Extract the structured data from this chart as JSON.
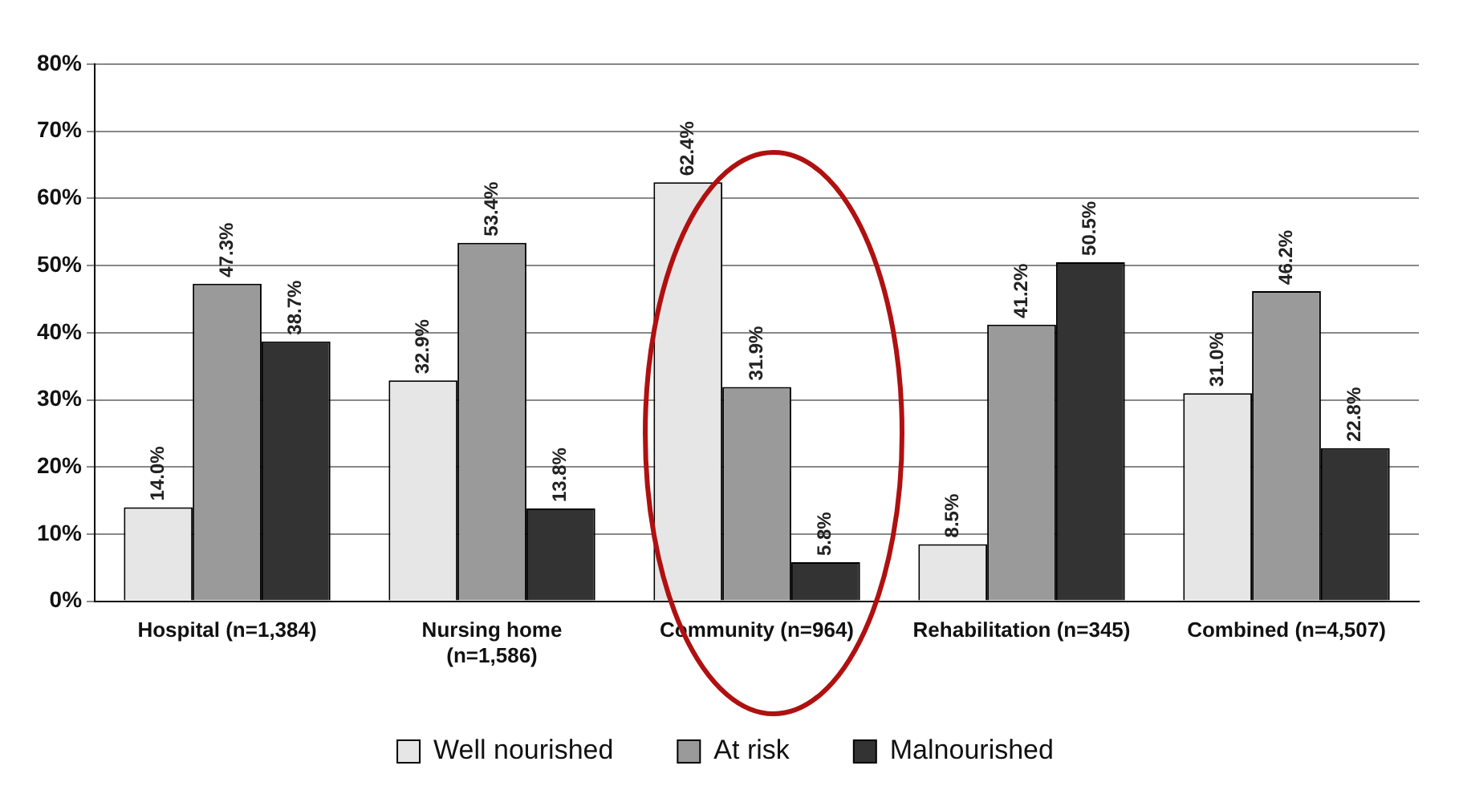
{
  "chart_data": {
    "type": "bar",
    "categories": [
      "Hospital (n=1,384)",
      "Nursing home (n=1,586)",
      "Community (n=964)",
      "Rehabilitation (n=345)",
      "Combined (n=4,507)"
    ],
    "series": [
      {
        "name": "Well nourished",
        "color": "#e6e6e6",
        "values": [
          14.0,
          32.9,
          62.4,
          8.5,
          31.0
        ],
        "value_labels": [
          "14.0%",
          "32.9%",
          "62.4%",
          "8.5%",
          "31.0%"
        ]
      },
      {
        "name": "At risk",
        "color": "#9a9a9a",
        "values": [
          47.3,
          53.4,
          31.9,
          41.2,
          46.2
        ],
        "value_labels": [
          "47.3%",
          "53.4%",
          "31.9%",
          "41.2%",
          "46.2%"
        ]
      },
      {
        "name": "Malnourished",
        "color": "#333333",
        "values": [
          38.7,
          13.8,
          5.8,
          50.5,
          22.8
        ],
        "value_labels": [
          "38.7%",
          "13.8%",
          "5.8%",
          "50.5%",
          "22.8%"
        ]
      }
    ],
    "ylim": [
      0,
      80
    ],
    "yticks": [
      {
        "value": 0,
        "label": "0%"
      },
      {
        "value": 10,
        "label": "10%"
      },
      {
        "value": 20,
        "label": "20%"
      },
      {
        "value": 30,
        "label": "30%"
      },
      {
        "value": 40,
        "label": "40%"
      },
      {
        "value": 50,
        "label": "50%"
      },
      {
        "value": 60,
        "label": "60%"
      },
      {
        "value": 70,
        "label": "70%"
      },
      {
        "value": 80,
        "label": "80%"
      }
    ],
    "grid": "y",
    "legend": "bottom"
  }
}
